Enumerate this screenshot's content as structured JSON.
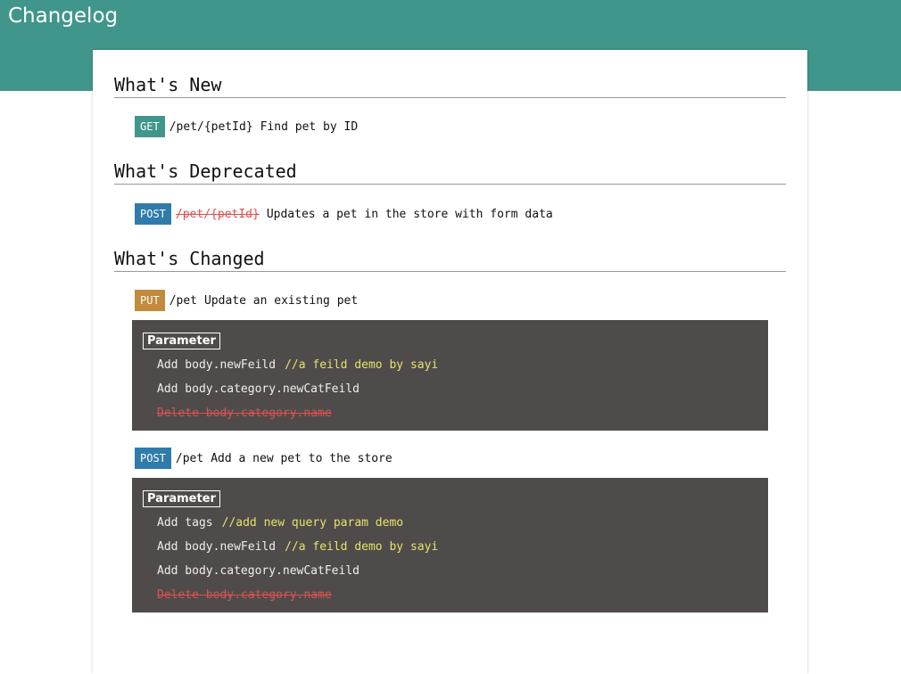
{
  "header": {
    "title": "Changelog"
  },
  "colors": {
    "header": "#40968a",
    "get": "#40968a",
    "post": "#2f7bab",
    "put": "#c28a3a",
    "block": "#4f4b4b",
    "delete": "#d9534f",
    "comment": "#e6e26a"
  },
  "new": {
    "title": "What's New",
    "items": [
      {
        "method": "GET",
        "path": "/pet/{petId}",
        "summary": "Find pet by ID"
      }
    ]
  },
  "deprecated": {
    "title": "What's Deprecated",
    "items": [
      {
        "method": "POST",
        "path": "/pet/{petId}",
        "summary": "Updates a pet in the store with form data"
      }
    ]
  },
  "changed": {
    "title": "What's Changed",
    "items": [
      {
        "method": "PUT",
        "path": "/pet",
        "summary": "Update an existing pet",
        "param_label": "Parameter",
        "lines": [
          {
            "text": "Add body.newFeild",
            "comment": "//a feild demo by sayi"
          },
          {
            "text": "Add body.category.newCatFeild",
            "comment": ""
          }
        ],
        "delete": {
          "prefix": "Delete",
          "text": "body.category.name"
        }
      },
      {
        "method": "POST",
        "path": "/pet",
        "summary": "Add a new pet to the store",
        "param_label": "Parameter",
        "lines": [
          {
            "text": "Add tags",
            "comment": "//add new query param demo"
          },
          {
            "text": "Add body.newFeild",
            "comment": "//a feild demo by sayi"
          },
          {
            "text": "Add body.category.newCatFeild",
            "comment": ""
          }
        ],
        "delete": {
          "prefix": "Delete",
          "text": "body.category.name"
        }
      }
    ]
  }
}
